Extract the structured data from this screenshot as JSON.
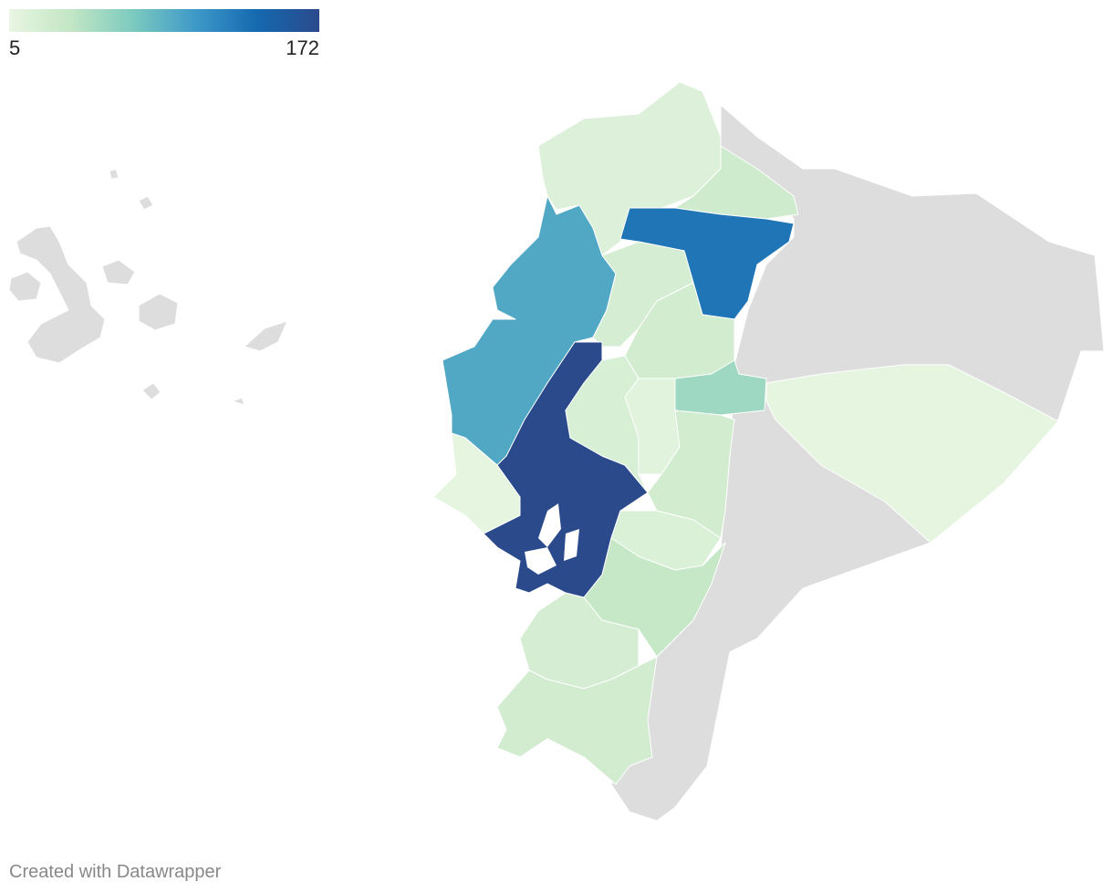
{
  "chart_data": {
    "type": "choropleth",
    "legend": {
      "min": 5,
      "max": 172,
      "colors": [
        "#e9f6e3",
        "#c2e6c4",
        "#7ccabf",
        "#3e99c8",
        "#1569b0",
        "#2a4a8c"
      ]
    },
    "no_data_color": "#dddddd",
    "values": [
      15,
      28,
      130,
      95,
      22,
      25,
      55,
      172,
      20,
      12,
      25,
      18,
      35,
      8,
      22,
      25
    ],
    "footer": "Created with Datawrapper"
  }
}
